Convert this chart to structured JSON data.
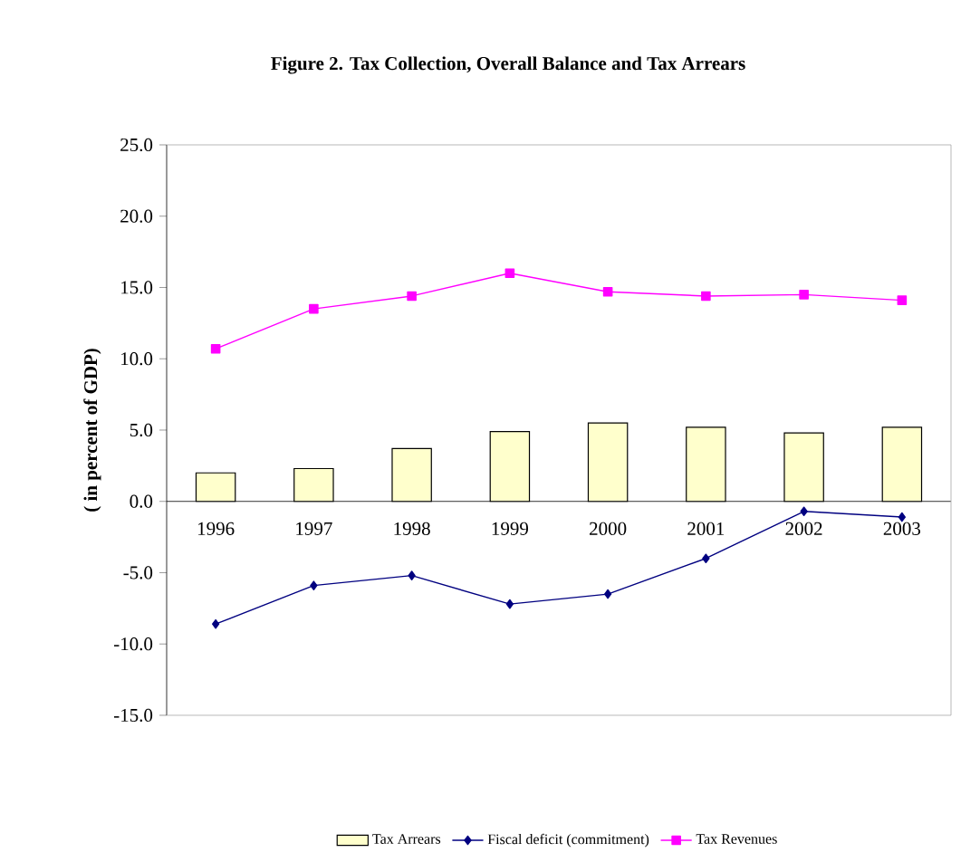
{
  "chart_data": {
    "type": "bar",
    "title": "Figure 2. Tax Collection, Overall Balance and Tax Arrears",
    "ylabel": "( in percent of GDP)",
    "categories": [
      "1996",
      "1997",
      "1998",
      "1999",
      "2000",
      "2001",
      "2002",
      "2003"
    ],
    "series": [
      {
        "name": "Tax Arrears",
        "color": "#ffffcc",
        "values": [
          2.0,
          2.3,
          3.7,
          4.9,
          5.5,
          5.2,
          4.8,
          5.2
        ]
      },
      {
        "name": "Fiscal deficit (commitment)",
        "type": "line",
        "color": "#000080",
        "marker": "diamond",
        "values": [
          -8.6,
          -5.9,
          -5.2,
          -7.2,
          -6.5,
          -4.0,
          -0.7,
          -1.1
        ]
      },
      {
        "name": "Tax Revenues",
        "type": "line",
        "color": "#ff00ff",
        "marker": "square",
        "values": [
          10.7,
          13.5,
          14.4,
          16.0,
          14.7,
          14.4,
          14.5,
          14.1
        ]
      }
    ],
    "ylim": [
      -15,
      25
    ],
    "yticks": [
      {
        "value": -15,
        "label": "-15.0"
      },
      {
        "value": -10,
        "label": "-10.0"
      },
      {
        "value": -5,
        "label": "-5.0"
      },
      {
        "value": 0,
        "label": "0.0"
      },
      {
        "value": 5,
        "label": "5.0"
      },
      {
        "value": 10,
        "label": "10.0"
      },
      {
        "value": 15,
        "label": "15.0"
      },
      {
        "value": 20,
        "label": "20.0"
      },
      {
        "value": 25,
        "label": "25.0"
      }
    ],
    "grid": false,
    "legend": "bottom"
  }
}
